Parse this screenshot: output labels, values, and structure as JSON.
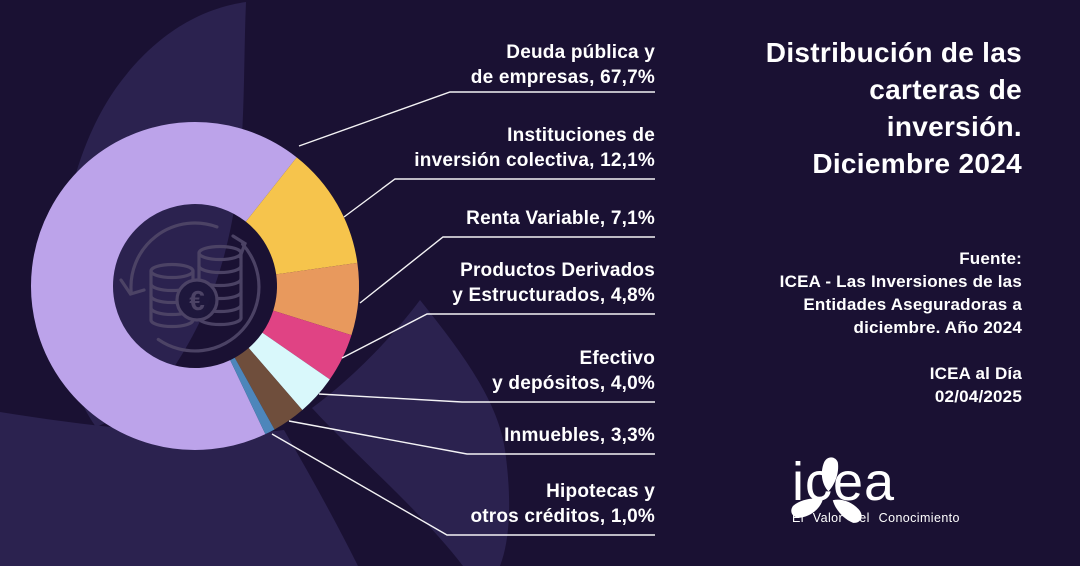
{
  "chart_data": {
    "type": "pie",
    "variant": "donut",
    "title": "Distribución de las carteras de inversión. Diciembre 2024",
    "unit": "%",
    "start_angle_deg": 154.6,
    "direction": "clockwise",
    "legend_position": "callout-labels-right",
    "segments": [
      {
        "label": "Deuda pública y de empresas",
        "value": 67.7,
        "display_label": "Deuda pública y\nde empresas, 67,7%",
        "color": "#bca3ea"
      },
      {
        "label": "Instituciones de inversión colectiva",
        "value": 12.1,
        "display_label": "Instituciones de\ninversión colectiva, 12,1%",
        "color": "#f6c44c"
      },
      {
        "label": "Renta Variable",
        "value": 7.1,
        "display_label": "Renta Variable, 7,1%",
        "color": "#e8995d"
      },
      {
        "label": "Productos Derivados y Estructurados",
        "value": 4.8,
        "display_label": "Productos Derivados\ny Estructurados, 4,8%",
        "color": "#e04384"
      },
      {
        "label": "Efectivo y depósitos",
        "value": 4.0,
        "display_label": "Efectivo\ny depósitos, 4,0%",
        "color": "#d9f8fb"
      },
      {
        "label": "Inmuebles",
        "value": 3.3,
        "display_label": "Inmuebles, 3,3%",
        "color": "#6f4e3c"
      },
      {
        "label": "Hipotecas y otros créditos",
        "value": 1.0,
        "display_label": "Hipotecas y\notros créditos, 1,0%",
        "color": "#4d86bb"
      }
    ]
  },
  "header": {
    "title": "Distribución de las\ncarteras de\ninversión.\nDiciembre 2024"
  },
  "source": {
    "fuente": "Fuente:\nICEA - Las Inversiones de las\nEntidades Aseguradoras a\ndiciembre. Año 2024",
    "edition": "ICEA al Día\n02/04/2025"
  },
  "logo": {
    "name": "icea",
    "tagline": "El Valor del Conocimiento"
  },
  "icons": {
    "center": "coins-euro-cycle-icon",
    "logo_mark": "icea-trefoil-icon",
    "euro_symbol": "€"
  },
  "colors": {
    "background": "#1a1133",
    "watermark_petal": "#2b224f",
    "label_text": "#ffffff",
    "leader_line": "#ffffff",
    "center_icon_stroke": "#4e4567"
  }
}
